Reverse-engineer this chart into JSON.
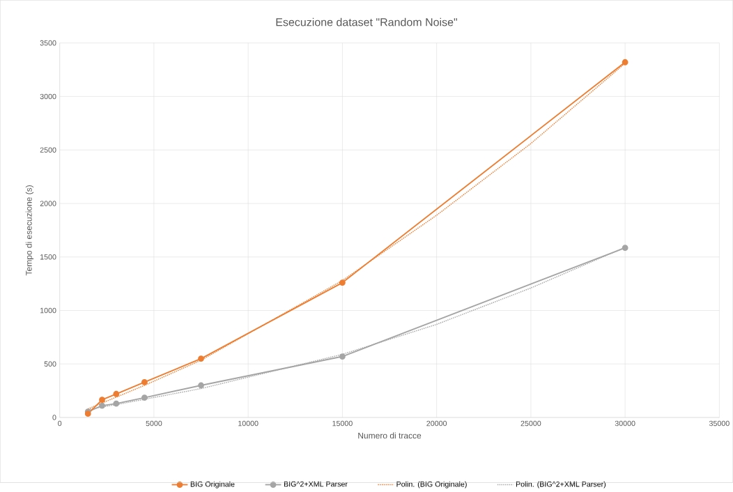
{
  "chart_data": {
    "type": "line",
    "title": "Esecuzione dataset \"Random Noise\"",
    "xlabel": "Numero di tracce",
    "ylabel": "Tempo di esecuzione (s)",
    "xlim": [
      0,
      35000
    ],
    "xticks": [
      0,
      5000,
      10000,
      15000,
      20000,
      25000,
      30000,
      35000
    ],
    "ylim": [
      0,
      3500
    ],
    "yticks": [
      0,
      500,
      1000,
      1500,
      2000,
      2500,
      3000,
      3500
    ],
    "grid": true,
    "legend": "bottom",
    "series": [
      {
        "name": "BIG Originale",
        "color": "#ed7d31",
        "marker": "circle",
        "line_style": "solid",
        "x": [
          1500,
          2250,
          3000,
          4500,
          7500,
          15000,
          30000
        ],
        "values": [
          35,
          165,
          220,
          330,
          550,
          1260,
          3320
        ]
      },
      {
        "name": "BIG^2+XML Parser",
        "color": "#a5a5a5",
        "marker": "circle",
        "line_style": "solid",
        "x": [
          1500,
          2250,
          3000,
          4500,
          7500,
          15000,
          30000
        ],
        "values": [
          55,
          110,
          130,
          185,
          300,
          570,
          1585
        ]
      },
      {
        "name": "Polin. (BIG Originale)",
        "color": "#ed7d31",
        "marker": "none",
        "line_style": "dotted",
        "x": [
          1500,
          3000,
          4500,
          7500,
          15000,
          20000,
          25000,
          30000
        ],
        "values": [
          80,
          190,
          300,
          535,
          1280,
          1890,
          2560,
          3310
        ]
      },
      {
        "name": "Polin. (BIG^2+XML Parser)",
        "color": "#a5a5a5",
        "marker": "none",
        "line_style": "dotted",
        "x": [
          1500,
          3000,
          4500,
          7500,
          15000,
          20000,
          25000,
          30000
        ],
        "values": [
          75,
          120,
          170,
          270,
          590,
          870,
          1210,
          1590
        ]
      }
    ]
  }
}
